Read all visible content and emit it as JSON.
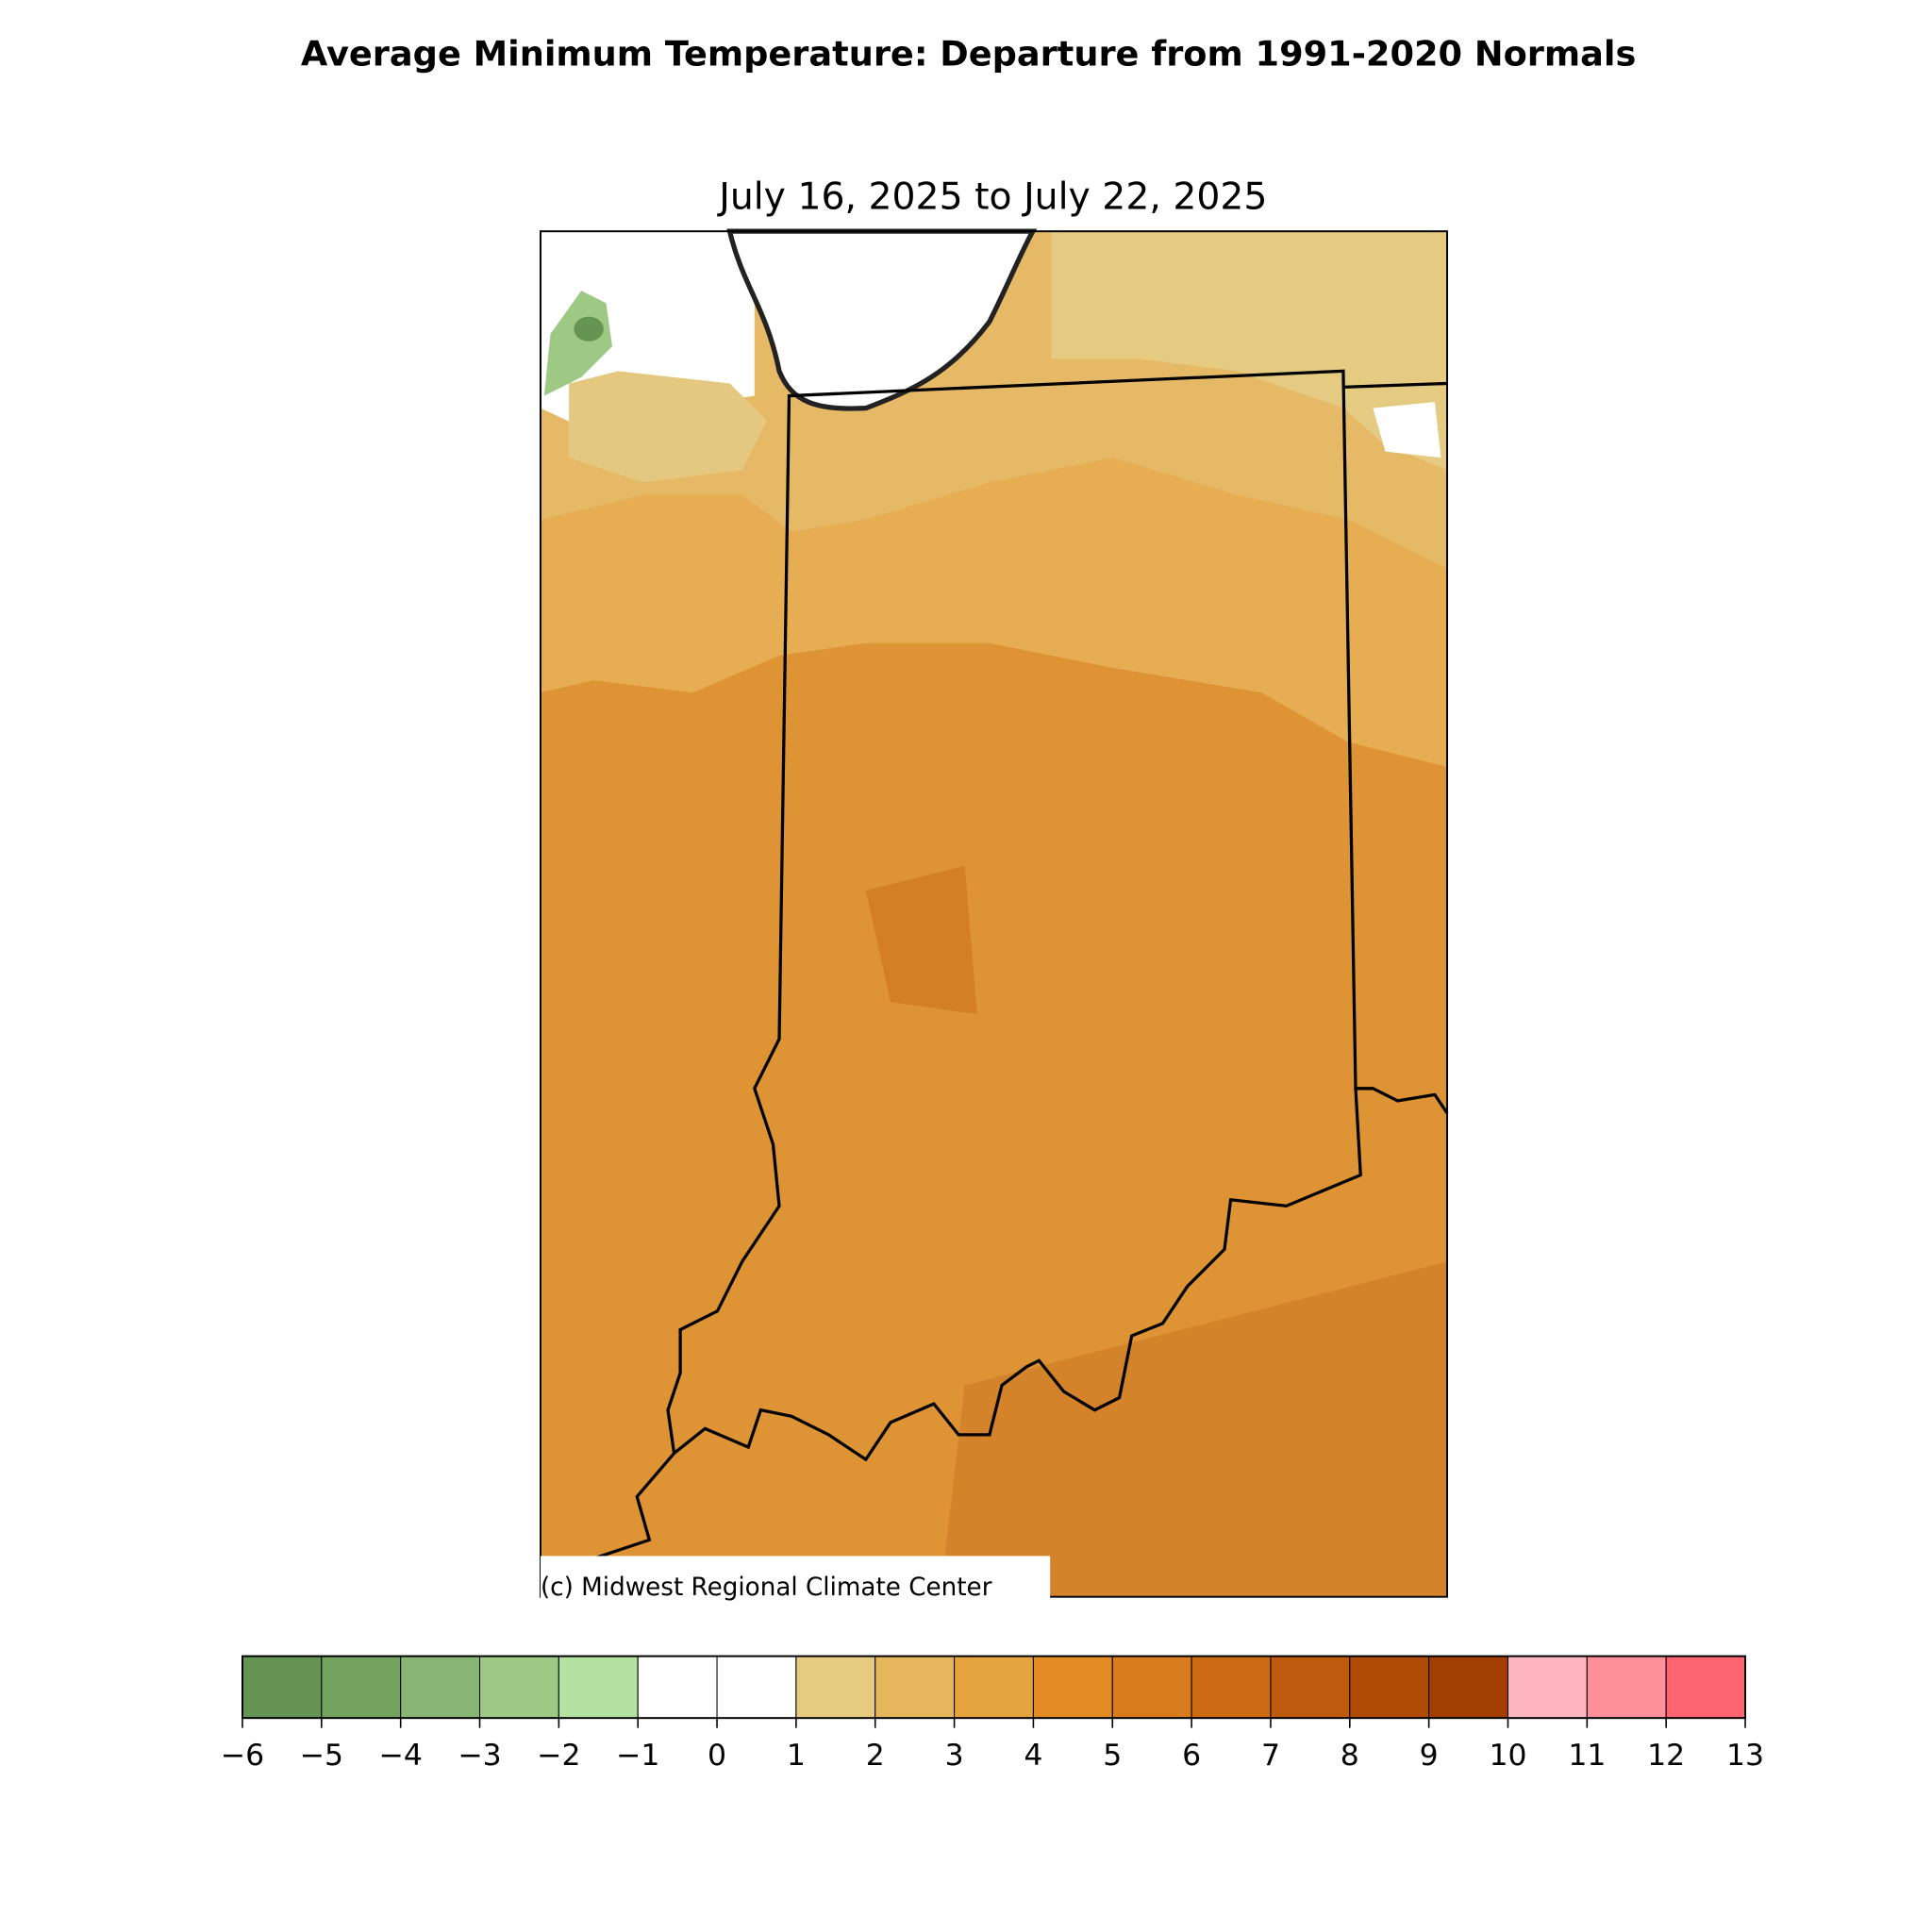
{
  "title": "Average Minimum Temperature: Departure from 1991-2020 Normals",
  "subtitle": "July 16, 2025 to July 22, 2025",
  "credit": "(c) Midwest Regional Climate Center",
  "colorbar": {
    "ticks": [
      {
        "value": -6,
        "label": "−6"
      },
      {
        "value": -5,
        "label": "−5"
      },
      {
        "value": -4,
        "label": "−4"
      },
      {
        "value": -3,
        "label": "−3"
      },
      {
        "value": -2,
        "label": "−2"
      },
      {
        "value": -1,
        "label": "−1"
      },
      0,
      1,
      2,
      3,
      4,
      5,
      6,
      7,
      8,
      9,
      10,
      11,
      12,
      13
    ],
    "colors": [
      "#659453",
      "#74a25f",
      "#89b574",
      "#9ec985",
      "#b4e2a1",
      "#ffffff",
      "#ffffff",
      "#e5ca7f",
      "#e6b65d",
      "#e6a43e",
      "#e38b24",
      "#d87c1d",
      "#cc6b14",
      "#bd5a0d",
      "#b04b06",
      "#a33e02",
      "#ffb6c1",
      "#ff8f98",
      "#ff6470"
    ]
  }
}
